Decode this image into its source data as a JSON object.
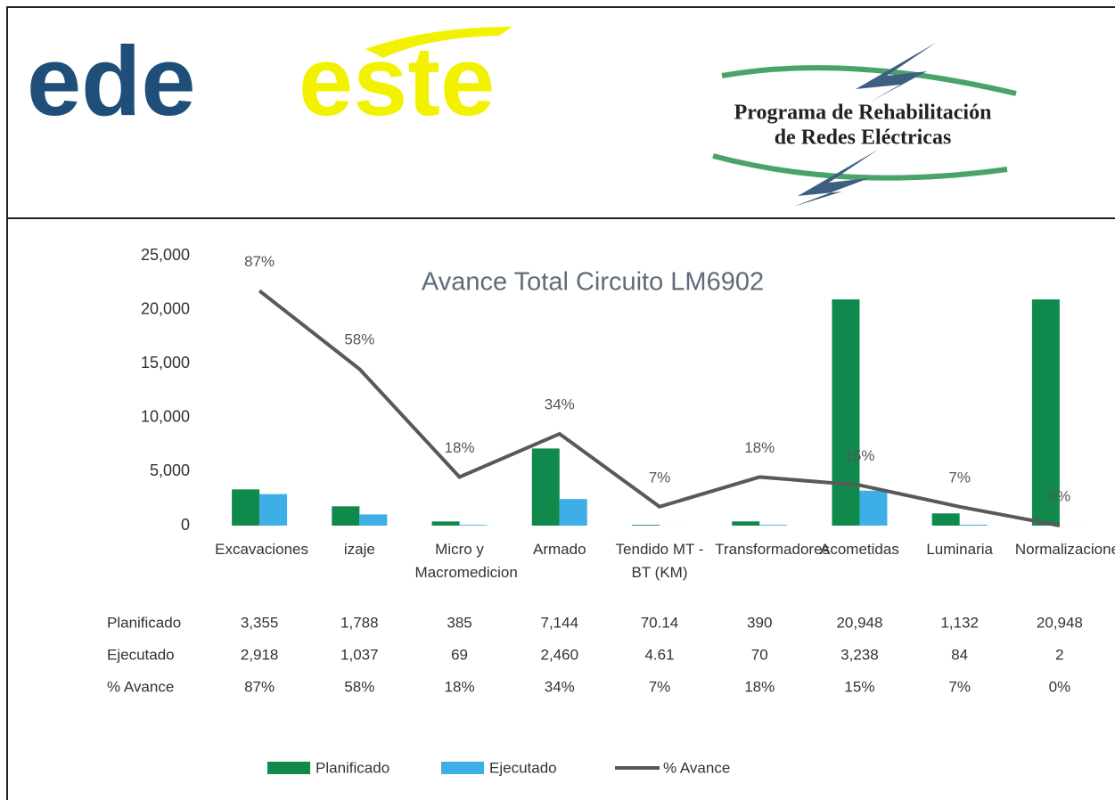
{
  "header": {
    "brand_left": "ede",
    "brand_right": "este",
    "program": [
      "Programa de Rehabilitación",
      "de Redes Eléctricas"
    ]
  },
  "chart_data": {
    "type": "bar",
    "title": "Avance Total Circuito LM6902",
    "categories": [
      "Excavaciones",
      "izaje",
      "Micro y Macromedicion",
      "Armado",
      "Tendido MT - BT (KM)",
      "Transformadores",
      "Acometidas",
      "Luminaria",
      "Normalizaciones"
    ],
    "series": [
      {
        "name": "Planificado",
        "color": "#0f8a4c",
        "values": [
          3355,
          1788,
          385,
          7144,
          70.14,
          390,
          20948,
          1132,
          20948
        ],
        "value_labels": [
          "3,355",
          "1,788",
          "385",
          "7,144",
          "70.14",
          "390",
          "20,948",
          "1,132",
          "20,948"
        ]
      },
      {
        "name": "Ejecutado",
        "color": "#3daee6",
        "values": [
          2918,
          1037,
          69,
          2460,
          4.61,
          70,
          3238,
          84,
          2
        ],
        "value_labels": [
          "2,918",
          "1,037",
          "69",
          "2,460",
          "4.61",
          "70",
          "3,238",
          "84",
          "2"
        ]
      },
      {
        "name": "% Avance",
        "type": "line",
        "axis": "y2",
        "color": "#595959",
        "values": [
          87,
          58,
          18,
          34,
          7,
          18,
          15,
          7,
          0
        ],
        "value_labels": [
          "87%",
          "58%",
          "18%",
          "34%",
          "7%",
          "18%",
          "15%",
          "7%",
          "0%"
        ]
      }
    ],
    "ylim": [
      0,
      25000
    ],
    "yticks": [
      0,
      {
        "value": 5000,
        "label": "5,000"
      },
      {
        "value": 10000,
        "label": "10,000"
      },
      {
        "value": 15000,
        "label": "15,000"
      },
      {
        "value": 20000,
        "label": "20,000"
      },
      {
        "value": 25000,
        "label": "25,000"
      }
    ],
    "y2lim": [
      0,
      100
    ],
    "legend": "bottom"
  }
}
